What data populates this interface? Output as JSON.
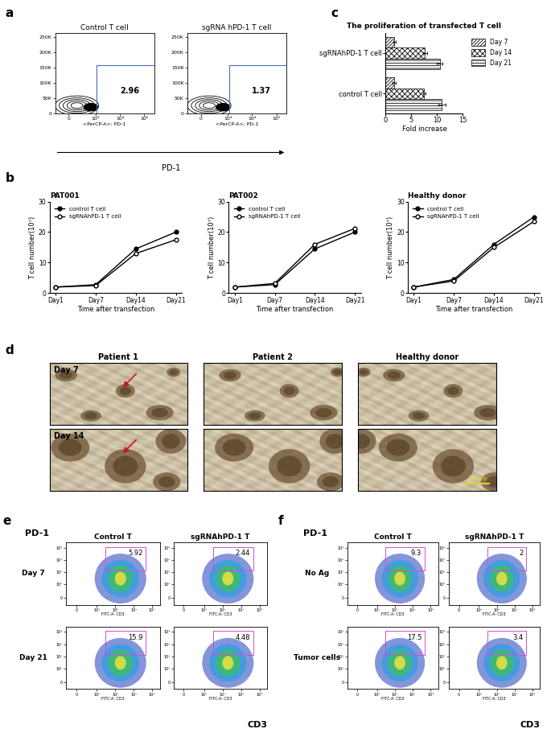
{
  "chart_data": [
    {
      "type": "flow_contour",
      "panel_label": "a",
      "title": "Control T cell",
      "xlabel": "<PerCP-A>: PD-1",
      "gate_value": 2.96,
      "log": "x",
      "xlim": [
        -500,
        262143
      ],
      "xticks": [
        0,
        {
          "value": 1000,
          "label": "10³"
        },
        {
          "value": 10000,
          "label": "10⁴"
        },
        {
          "value": 100000,
          "label": "10⁵"
        }
      ],
      "ylim": [
        0,
        262143
      ],
      "yticks": [
        0,
        {
          "value": 50000,
          "label": "50K"
        },
        {
          "value": 100000,
          "label": "100K"
        },
        {
          "value": 150000,
          "label": "150K"
        },
        {
          "value": 200000,
          "label": "200K"
        },
        {
          "value": 250000,
          "label": "250K"
        }
      ]
    },
    {
      "type": "flow_contour",
      "title": "sgRNA hPD-1 T cell",
      "xlabel": "<PerCP-A>: PD-1",
      "gate_value": 1.37,
      "log": "x",
      "xlim": [
        -500,
        262143
      ],
      "xticks": [
        0,
        {
          "value": 1000,
          "label": "10³"
        },
        {
          "value": 10000,
          "label": "10⁴"
        },
        {
          "value": 100000,
          "label": "10⁵"
        }
      ],
      "ylim": [
        0,
        262143
      ],
      "yticks": [
        0,
        {
          "value": 50000,
          "label": "50K"
        },
        {
          "value": 100000,
          "label": "100K"
        },
        {
          "value": 150000,
          "label": "150K"
        },
        {
          "value": 200000,
          "label": "200K"
        },
        {
          "value": 250000,
          "label": "250K"
        }
      ]
    },
    {
      "type": "bar",
      "panel_label": "c",
      "orientation": "horizontal",
      "title": "The proliferation of transfected T cell",
      "xlabel": "Fold increase",
      "categories": [
        "control T cell",
        "sgRNAhPD-1 T cell"
      ],
      "xlim": [
        0,
        15
      ],
      "xticks": [
        0,
        5,
        10,
        15
      ],
      "legend": "upper left",
      "series": [
        {
          "name": "Day 7",
          "color": "#ffffff",
          "values": [
            1.7,
            1.7
          ],
          "errors": [
            0.3,
            0.2
          ]
        },
        {
          "name": "Day 14",
          "color": "#ffffff",
          "values": [
            7.5,
            7.6
          ],
          "errors": [
            0.2,
            0.4
          ]
        },
        {
          "name": "Day 21",
          "color": "#ffffff",
          "values": [
            10.9,
            10.5
          ],
          "errors": [
            0.7,
            0.6
          ]
        }
      ]
    },
    {
      "type": "line",
      "panel_label": "b",
      "title": "PAT001",
      "xlabel": "Time after transfection",
      "ylabel": "T cell number(10⁷)",
      "categories": [
        "Day1",
        "Day7",
        "Day14",
        "Day21"
      ],
      "ylim": [
        0,
        30
      ],
      "yticks": [
        0,
        10,
        20,
        30
      ],
      "legend": "upper left",
      "series": [
        {
          "name": "control T cell",
          "color": "#000000",
          "marker": "circle",
          "values": [
            2,
            2.8,
            14.5,
            20
          ]
        },
        {
          "name": "sgRNAhPD-1 T cell",
          "color": "#000000",
          "marker": "open circle",
          "values": [
            2,
            2.5,
            13,
            17.5
          ]
        }
      ]
    },
    {
      "type": "line",
      "title": "PAT002",
      "xlabel": "Time after transfection",
      "ylabel": "T cell number(10⁷)",
      "categories": [
        "Day1",
        "Day7",
        "Day14",
        "Day21"
      ],
      "ylim": [
        0,
        30
      ],
      "yticks": [
        0,
        10,
        20,
        30
      ],
      "legend": "upper left",
      "series": [
        {
          "name": "control T cell",
          "color": "#000000",
          "marker": "circle",
          "values": [
            2,
            2.8,
            14.5,
            20
          ]
        },
        {
          "name": "sgRNAhPD-1 T cell",
          "color": "#000000",
          "marker": "open circle",
          "values": [
            2,
            3.2,
            16,
            21.2
          ]
        }
      ]
    },
    {
      "type": "line",
      "title": "Healthy donor",
      "xlabel": "Time after transfection",
      "ylabel": "T cell number(10⁷)",
      "categories": [
        "Day1",
        "Day7",
        "Day14",
        "Day21"
      ],
      "ylim": [
        0,
        30
      ],
      "yticks": [
        0,
        10,
        20,
        30
      ],
      "legend": "upper left",
      "series": [
        {
          "name": "control T cell",
          "color": "#000000",
          "marker": "circle",
          "values": [
            2,
            4.5,
            16,
            25
          ]
        },
        {
          "name": "sgRNAhPD-1 T cell",
          "color": "#000000",
          "marker": "open circle",
          "values": [
            2,
            4,
            15,
            23.5
          ]
        }
      ]
    }
  ],
  "a_arrow_label": "PD-1",
  "images": {
    "panel_label": "d",
    "columns": [
      "Patient 1",
      "Patient 2",
      "Healthy donor"
    ],
    "rows": [
      "Day 7",
      "Day 14"
    ],
    "scale_bar": "200μm"
  },
  "flow_grids": [
    {
      "panel_label": "e",
      "y_axis_label": "PD-1",
      "x_axis_label": "CD3",
      "xlabel": "FITC-A: CD3",
      "columns": [
        "Control T",
        "sgRNAhPD-1 T"
      ],
      "rows": [
        "Day 7",
        "Day 21"
      ],
      "gate_values": [
        [
          5.92,
          2.44
        ],
        [
          15.9,
          4.48
        ]
      ],
      "log": true,
      "xlim": [
        -50,
        262143
      ],
      "ylim": [
        -50,
        262143
      ],
      "xticks": [
        0,
        {
          "value": 100,
          "label": "10²"
        },
        {
          "value": 1000,
          "label": "10³"
        },
        {
          "value": 10000,
          "label": "10⁴"
        },
        {
          "value": 100000,
          "label": "10⁵"
        }
      ],
      "yticks": [
        0,
        {
          "value": 100,
          "label": "10²"
        },
        {
          "value": 1000,
          "label": "10³"
        },
        {
          "value": 10000,
          "label": "10⁴"
        },
        {
          "value": 100000,
          "label": "10⁵"
        }
      ]
    },
    {
      "panel_label": "f",
      "y_axis_label": "PD-1",
      "x_axis_label": "CD3",
      "xlabel": "FITC-A: CD3",
      "columns": [
        "Control T",
        "sgRNAhPD-1 T"
      ],
      "rows": [
        "No Ag",
        "Tumor cells"
      ],
      "gate_values": [
        [
          9.3,
          2
        ],
        [
          17.5,
          3.4
        ]
      ],
      "log": true,
      "xlim": [
        -50,
        262143
      ],
      "ylim": [
        -50,
        262143
      ],
      "xticks": [
        0,
        {
          "value": 100,
          "label": "10²"
        },
        {
          "value": 1000,
          "label": "10³"
        },
        {
          "value": 10000,
          "label": "10⁴"
        },
        {
          "value": 100000,
          "label": "10⁵"
        }
      ],
      "yticks": [
        0,
        {
          "value": 100,
          "label": "10²"
        },
        {
          "value": 1000,
          "label": "10³"
        },
        {
          "value": 10000,
          "label": "10⁴"
        },
        {
          "value": 100000,
          "label": "10⁵"
        }
      ]
    }
  ]
}
